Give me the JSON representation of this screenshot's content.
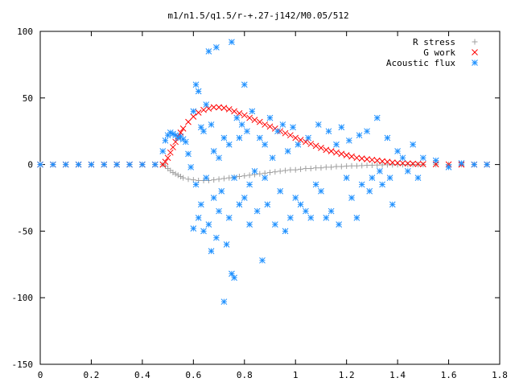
{
  "chart_data": {
    "type": "scatter",
    "title": "m1/n1.5/q1.5/r-+.27-j142/M0.05/512",
    "xlabel": "",
    "ylabel": "",
    "xlim": [
      0,
      1.8
    ],
    "ylim": [
      -150,
      100
    ],
    "xticks": [
      "0",
      "0.2",
      "0.4",
      "0.6",
      "0.8",
      "1",
      "1.2",
      "1.4",
      "1.6",
      "1.8"
    ],
    "yticks": [
      "100",
      "50",
      "0",
      "-50",
      "-100",
      "-150"
    ],
    "legend_position": "top-right",
    "grid": false,
    "series": [
      {
        "name": "R stress",
        "marker": "+",
        "color": "#a0a0a0",
        "x": [
          0.0,
          0.05,
          0.1,
          0.15,
          0.2,
          0.25,
          0.3,
          0.35,
          0.4,
          0.45,
          0.48,
          0.49,
          0.5,
          0.51,
          0.52,
          0.53,
          0.54,
          0.55,
          0.56,
          0.58,
          0.6,
          0.62,
          0.64,
          0.66,
          0.68,
          0.7,
          0.72,
          0.74,
          0.76,
          0.78,
          0.8,
          0.82,
          0.84,
          0.86,
          0.88,
          0.9,
          0.92,
          0.94,
          0.96,
          0.98,
          1.0,
          1.02,
          1.04,
          1.06,
          1.08,
          1.1,
          1.12,
          1.14,
          1.16,
          1.18,
          1.2,
          1.22,
          1.24,
          1.26,
          1.28,
          1.3,
          1.32,
          1.34,
          1.36,
          1.38,
          1.4,
          1.42,
          1.44,
          1.46,
          1.48,
          1.5,
          1.55,
          1.6,
          1.65,
          1.7,
          1.75
        ],
        "y": [
          0,
          0,
          0,
          0,
          0,
          0,
          0,
          0,
          0,
          0,
          0,
          -1,
          -3,
          -4.5,
          -6,
          -7,
          -8,
          -9,
          -10,
          -11,
          -11.5,
          -12,
          -12,
          -12,
          -11.5,
          -11,
          -10.5,
          -10,
          -9.5,
          -9,
          -8.5,
          -8,
          -7.5,
          -7,
          -6.5,
          -6,
          -5.5,
          -5,
          -4.5,
          -4,
          -4,
          -3.5,
          -3,
          -3,
          -2.5,
          -2.5,
          -2,
          -2,
          -1.5,
          -1.5,
          -1.2,
          -1,
          -1,
          -0.8,
          -0.6,
          -0.5,
          -0.4,
          -0.3,
          -0.2,
          -0.2,
          -0.1,
          -0.1,
          0,
          0,
          0,
          0,
          0,
          0,
          0,
          0,
          0
        ]
      },
      {
        "name": "G work",
        "marker": "x",
        "color": "#ff0000",
        "x": [
          0.0,
          0.05,
          0.1,
          0.15,
          0.2,
          0.25,
          0.3,
          0.35,
          0.4,
          0.45,
          0.48,
          0.49,
          0.5,
          0.51,
          0.52,
          0.53,
          0.54,
          0.55,
          0.56,
          0.58,
          0.6,
          0.62,
          0.64,
          0.66,
          0.68,
          0.7,
          0.72,
          0.74,
          0.76,
          0.78,
          0.8,
          0.82,
          0.84,
          0.86,
          0.88,
          0.9,
          0.92,
          0.94,
          0.96,
          0.98,
          1.0,
          1.02,
          1.04,
          1.06,
          1.08,
          1.1,
          1.12,
          1.14,
          1.16,
          1.18,
          1.2,
          1.22,
          1.24,
          1.26,
          1.28,
          1.3,
          1.32,
          1.34,
          1.36,
          1.38,
          1.4,
          1.42,
          1.44,
          1.46,
          1.48,
          1.5,
          1.55,
          1.6,
          1.65,
          1.7,
          1.75
        ],
        "y": [
          0,
          0,
          0,
          0,
          0,
          0,
          0,
          0,
          0,
          0,
          0,
          2,
          5,
          9,
          13,
          17,
          21,
          24,
          27,
          32,
          36,
          39,
          41,
          42,
          43,
          43,
          42.5,
          41.5,
          40,
          38.5,
          37,
          35,
          33.5,
          32,
          30,
          28.5,
          27,
          25,
          23.5,
          22,
          20,
          18.5,
          17,
          15.5,
          14,
          12.5,
          11,
          10,
          9,
          8,
          7,
          6,
          5,
          4.5,
          4,
          3.5,
          3,
          2.5,
          2,
          1.5,
          1.2,
          1,
          0.8,
          0.6,
          0.4,
          0.3,
          0.2,
          0.1,
          0,
          0,
          0
        ]
      },
      {
        "name": "Acoustic flux",
        "marker": "*",
        "color": "#1e90ff",
        "x": [
          0.0,
          0.05,
          0.1,
          0.15,
          0.2,
          0.25,
          0.3,
          0.35,
          0.4,
          0.45,
          0.48,
          0.49,
          0.5,
          0.51,
          0.52,
          0.53,
          0.54,
          0.55,
          0.56,
          0.57,
          0.58,
          0.59,
          0.6,
          0.6,
          0.61,
          0.61,
          0.62,
          0.62,
          0.63,
          0.63,
          0.64,
          0.64,
          0.65,
          0.65,
          0.66,
          0.66,
          0.67,
          0.67,
          0.68,
          0.68,
          0.69,
          0.69,
          0.7,
          0.7,
          0.71,
          0.72,
          0.72,
          0.73,
          0.74,
          0.74,
          0.75,
          0.75,
          0.76,
          0.76,
          0.77,
          0.78,
          0.78,
          0.79,
          0.8,
          0.8,
          0.81,
          0.82,
          0.82,
          0.83,
          0.84,
          0.85,
          0.86,
          0.87,
          0.88,
          0.88,
          0.89,
          0.9,
          0.91,
          0.92,
          0.93,
          0.94,
          0.95,
          0.96,
          0.97,
          0.98,
          0.99,
          1.0,
          1.01,
          1.02,
          1.04,
          1.05,
          1.06,
          1.08,
          1.09,
          1.1,
          1.12,
          1.13,
          1.14,
          1.16,
          1.17,
          1.18,
          1.2,
          1.21,
          1.22,
          1.24,
          1.25,
          1.26,
          1.28,
          1.29,
          1.3,
          1.32,
          1.33,
          1.34,
          1.36,
          1.37,
          1.38,
          1.4,
          1.42,
          1.44,
          1.46,
          1.48,
          1.5,
          1.55,
          1.6,
          1.65,
          1.7,
          1.75
        ],
        "y": [
          0,
          0,
          0,
          0,
          0,
          0,
          0,
          0,
          0,
          0,
          10,
          18,
          22,
          24,
          23,
          22,
          20,
          21,
          19,
          17,
          8,
          -2,
          40,
          -48,
          60,
          -15,
          55,
          -40,
          28,
          -30,
          25,
          -50,
          45,
          -10,
          85,
          -45,
          30,
          -65,
          10,
          -25,
          88,
          -55,
          5,
          -35,
          -20,
          -103,
          20,
          -60,
          15,
          -40,
          92,
          -82,
          -10,
          -85,
          35,
          20,
          -30,
          30,
          -25,
          60,
          25,
          -45,
          -15,
          40,
          -5,
          -35,
          20,
          -72,
          15,
          -10,
          -30,
          35,
          5,
          -45,
          25,
          -20,
          30,
          -50,
          10,
          -40,
          28,
          -25,
          15,
          -30,
          -35,
          20,
          -40,
          -15,
          30,
          -20,
          -40,
          25,
          -35,
          15,
          -45,
          28,
          -10,
          18,
          -25,
          -40,
          22,
          -15,
          25,
          -20,
          -10,
          35,
          -5,
          -15,
          20,
          -10,
          -30,
          10,
          5,
          -5,
          15,
          -10,
          5,
          3,
          -2,
          1,
          0,
          0
        ]
      }
    ]
  }
}
